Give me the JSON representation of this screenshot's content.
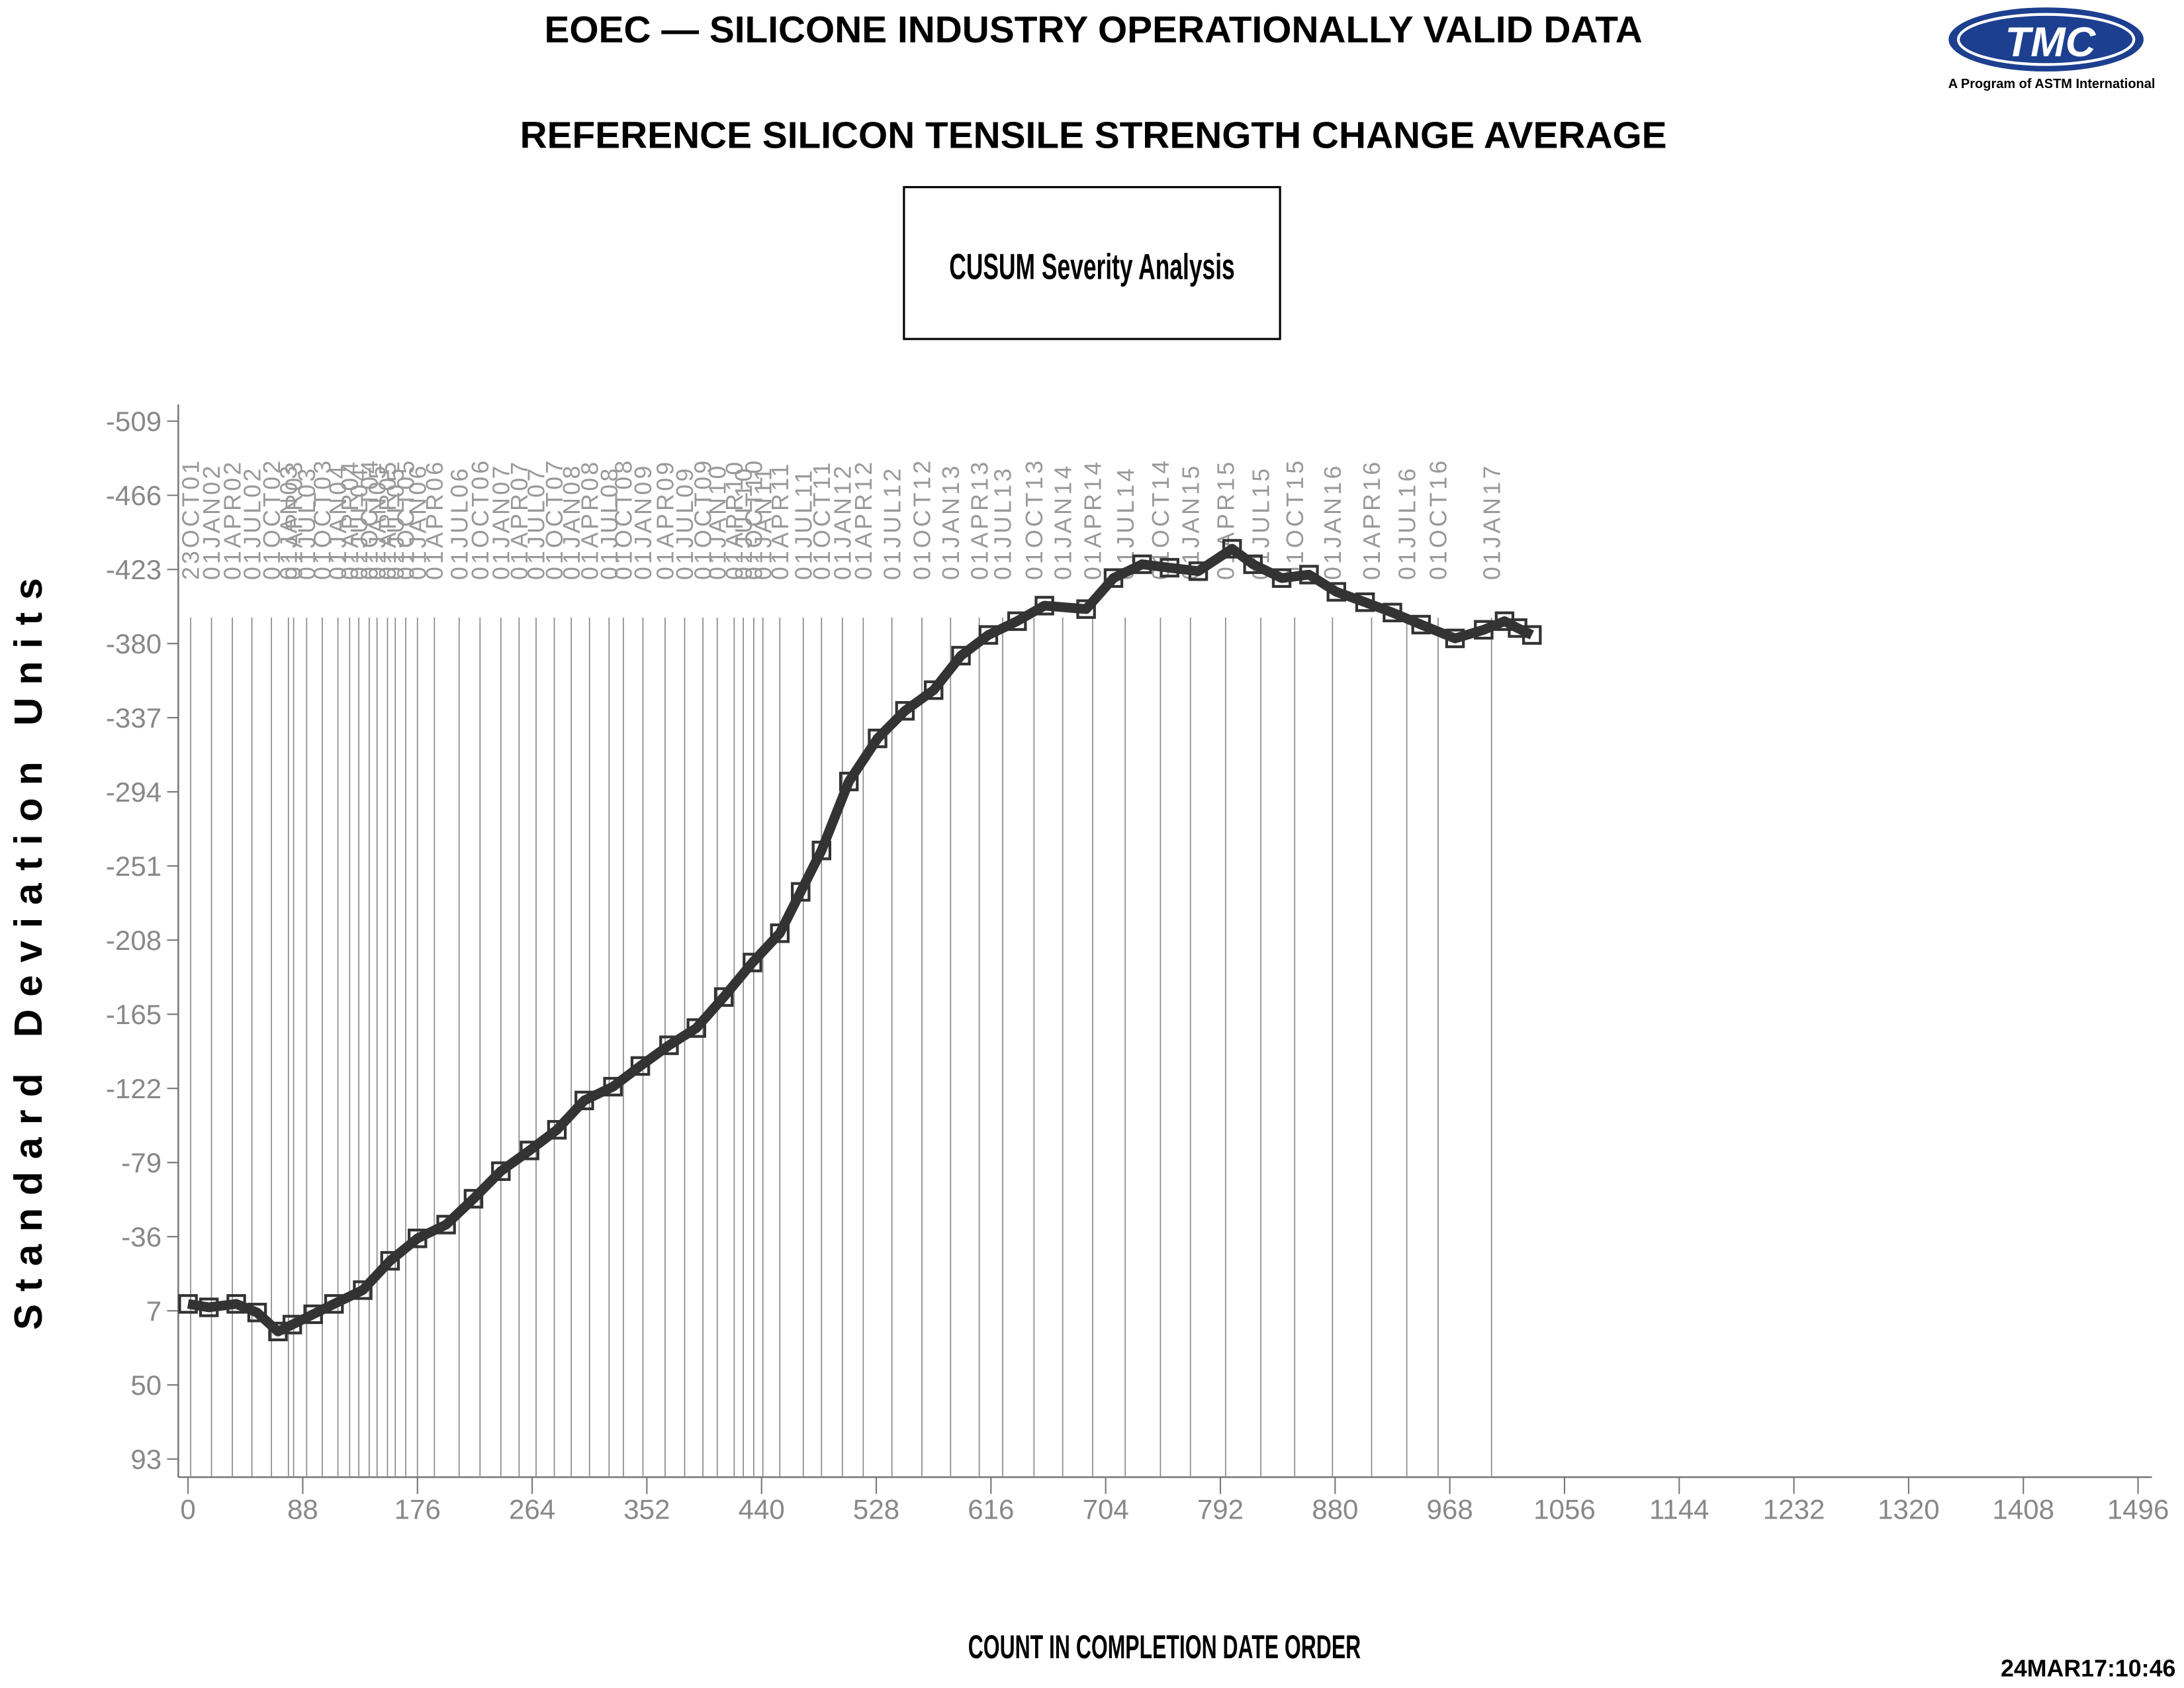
{
  "chart_data": {
    "type": "line",
    "title": "EOEC — SILICONE INDUSTRY OPERATIONALLY VALID DATA",
    "subtitle": "REFERENCE SILICON TENSILE STRENGTH CHANGE AVERAGE",
    "annotation": "CUSUM Severity Analysis",
    "y_label": "Standard Deviation Units",
    "x_label": "COUNT IN COMPLETION DATE ORDER",
    "timestamp": "24MAR17:10:46",
    "logo": {
      "text": "TMC",
      "caption": "A Program of ASTM International"
    },
    "color": "#333333",
    "x": [
      0,
      16,
      37,
      53,
      69,
      80,
      96,
      112,
      134,
      155,
      176,
      198,
      219,
      240,
      262,
      283,
      304,
      326,
      347,
      369,
      390,
      411,
      433,
      454,
      470,
      486,
      507,
      529,
      550,
      572,
      593,
      614,
      636,
      657,
      689,
      710,
      732,
      753,
      775,
      801,
      817,
      839,
      860,
      881,
      903,
      924,
      946,
      972,
      994,
      1010,
      1020,
      1031
    ],
    "values": [
      3,
      5,
      3,
      8,
      19,
      15,
      9,
      3,
      -5,
      -22,
      -35,
      -43,
      -58,
      -74,
      -86,
      -98,
      -115,
      -123,
      -135,
      -147,
      -157,
      -175,
      -195,
      -212,
      -236,
      -260,
      -300,
      -325,
      -341,
      -353,
      -373,
      -385,
      -393,
      -402,
      -400,
      -418,
      -426,
      -424,
      -422,
      -435,
      -426,
      -418,
      -420,
      -410,
      -404,
      -398,
      -391,
      -383,
      -388,
      -393,
      -389,
      -385
    ],
    "date_markers": {
      "x": [
        2,
        18,
        34,
        49,
        64,
        77,
        81,
        91,
        103,
        115,
        124,
        131,
        139,
        145,
        153,
        159,
        167,
        176,
        189,
        208,
        224,
        240,
        254,
        267,
        281,
        294,
        308,
        323,
        334,
        349,
        366,
        381,
        395,
        406,
        419,
        426,
        434,
        441,
        454,
        472,
        486,
        502,
        518,
        540,
        563,
        585,
        607,
        625,
        649,
        671,
        694,
        719,
        746,
        769,
        796,
        823,
        849,
        878,
        908,
        935,
        959,
        1000
      ],
      "labels": [
        "23OCT01",
        "01JAN02",
        "01APR02",
        "01JUL02",
        "01OCT02",
        "01JAN03",
        "01APR03",
        "01JUL03",
        "01OCT03",
        "01JAN04",
        "01APR04",
        "01JUL04",
        "01OCT04",
        "01JAN05",
        "01APR05",
        "01JUL05",
        "01OCT05",
        "01JAN06",
        "01APR06",
        "01JUL06",
        "01OCT06",
        "01JAN07",
        "01APR07",
        "01JUL07",
        "01OCT07",
        "01JAN08",
        "01APR08",
        "01JUL08",
        "01OCT08",
        "01JAN09",
        "01APR09",
        "01JUL09",
        "01OCT09",
        "01JAN10",
        "01APR10",
        "01JUL10",
        "01OCT10",
        "01JAN11",
        "01APR11",
        "01JUL11",
        "01OCT11",
        "01JAN12",
        "01APR12",
        "01JUL12",
        "01OCT12",
        "01JAN13",
        "01APR13",
        "01JUL13",
        "01OCT13",
        "01JAN14",
        "01APR14",
        "01JUL14",
        "01OCT14",
        "01JAN15",
        "01APR15",
        "01JUL15",
        "01OCT15",
        "01JAN16",
        "01APR16",
        "01JUL16",
        "01OCT16",
        "01JAN17"
      ]
    },
    "xlim": [
      0,
      1496
    ],
    "xticks": [
      0,
      88,
      176,
      264,
      352,
      440,
      528,
      616,
      704,
      792,
      880,
      968,
      1056,
      1144,
      1232,
      1320,
      1408,
      1496
    ],
    "ylim": [
      93,
      -509
    ],
    "yticks": [
      93,
      50,
      7,
      -36,
      -79,
      -122,
      -165,
      -208,
      -251,
      -294,
      -337,
      -380,
      -423,
      -466,
      -509
    ]
  }
}
